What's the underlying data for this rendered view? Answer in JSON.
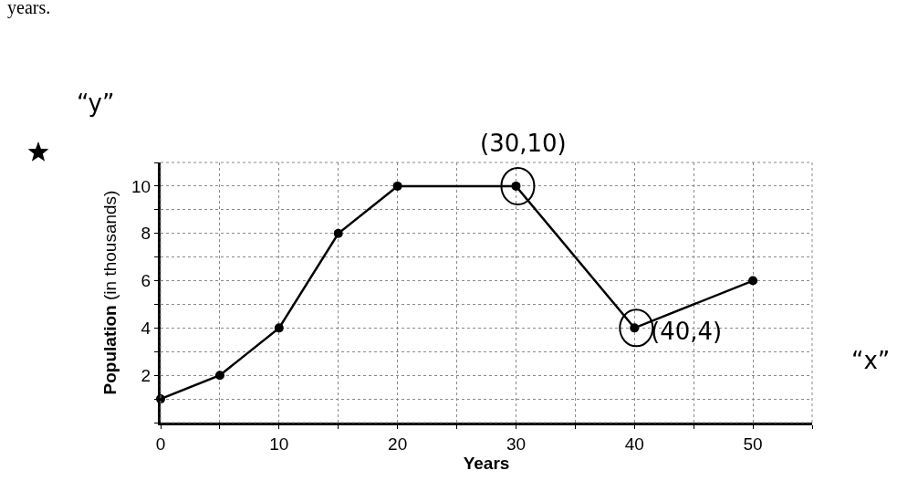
{
  "chart_data": {
    "type": "line",
    "xlabel": "Years",
    "ylabel": "Population (in thousands)",
    "x": [
      0,
      5,
      10,
      15,
      20,
      30,
      40,
      50
    ],
    "series": [
      {
        "color": "#000000",
        "values": [
          1,
          2,
          4,
          8,
          10,
          10,
          4,
          6
        ]
      }
    ],
    "xlim": [
      0,
      55
    ],
    "ylim": [
      0,
      11
    ],
    "xticks": [
      0,
      {
        "value": 5,
        "label": null
      },
      10,
      {
        "value": 15,
        "label": null
      },
      20,
      {
        "value": 25,
        "label": null
      },
      30,
      {
        "value": 35,
        "label": null
      },
      40,
      {
        "value": 45,
        "label": null
      },
      50,
      {
        "value": 55,
        "label": null
      }
    ],
    "yticks": [
      {
        "value": 0,
        "label": null
      },
      {
        "value": 1,
        "label": null
      },
      2,
      {
        "value": 3,
        "label": null
      },
      4,
      {
        "value": 5,
        "label": null
      },
      6,
      {
        "value": 7,
        "label": null
      },
      8,
      {
        "value": 9,
        "label": null
      },
      10,
      {
        "value": 11,
        "label": null
      }
    ],
    "grid": true,
    "marker": "circle",
    "line_style": "solid",
    "annotations": [
      "years.",
      "“y”",
      {
        "text": "(30,10)",
        "x": 30,
        "y": 10
      },
      {
        "text": "(40,4)",
        "x": 40,
        "y": 4
      },
      "“x”"
    ]
  }
}
